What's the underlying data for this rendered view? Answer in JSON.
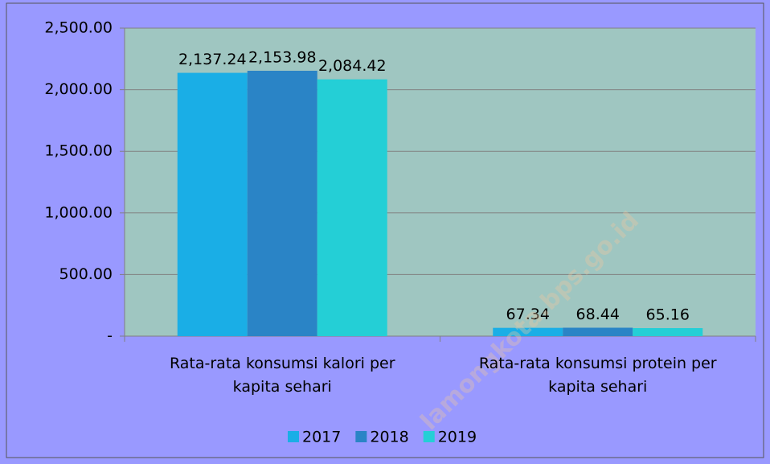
{
  "chart_data": {
    "type": "bar",
    "categories": [
      "Rata-rata konsumsi kalori per kapita sehari",
      "Rata-rata konsumsi protein per kapita sehari"
    ],
    "series": [
      {
        "name": "2017",
        "color": "#1aaee6",
        "values": [
          2137.24,
          67.34
        ],
        "value_labels": [
          "2,137.24",
          "67.34"
        ]
      },
      {
        "name": "2018",
        "color": "#2a84c6",
        "values": [
          2153.98,
          68.44
        ],
        "value_labels": [
          "2,153.98",
          "68.44"
        ]
      },
      {
        "name": "2019",
        "color": "#24cfd6",
        "values": [
          2084.42,
          65.16
        ],
        "value_labels": [
          "2,084.42",
          "65.16"
        ]
      }
    ],
    "ylim": [
      0,
      2500
    ],
    "yticks": [
      {
        "value": 0,
        "label": "-"
      },
      {
        "value": 500,
        "label": "500.00"
      },
      {
        "value": 1000,
        "label": "1,000.00"
      },
      {
        "value": 1500,
        "label": "1,500.00"
      },
      {
        "value": 2000,
        "label": "2,000.00"
      },
      {
        "value": 2500,
        "label": "2,500.00"
      }
    ],
    "grid": true,
    "legend": "bottom",
    "watermark": "lamongkota.bps.go.id"
  }
}
